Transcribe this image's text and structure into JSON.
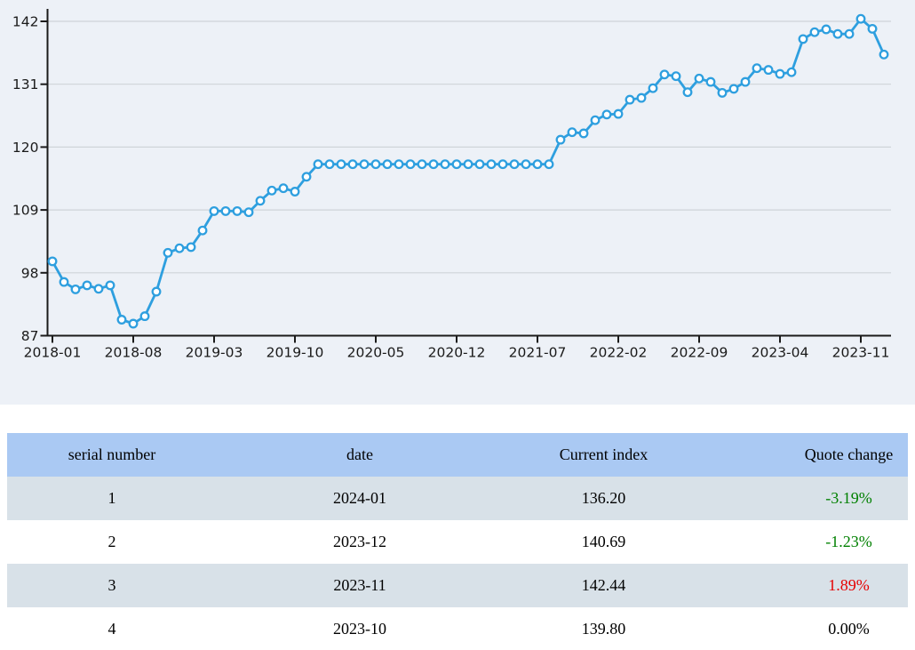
{
  "chart_data": {
    "type": "line",
    "title": "",
    "xlabel": "",
    "ylabel": "",
    "series_name": "Current index",
    "x": [
      "2018-01",
      "2018-02",
      "2018-03",
      "2018-04",
      "2018-05",
      "2018-06",
      "2018-07",
      "2018-08",
      "2018-09",
      "2018-10",
      "2018-11",
      "2018-12",
      "2019-01",
      "2019-02",
      "2019-03",
      "2019-04",
      "2019-05",
      "2019-06",
      "2019-07",
      "2019-08",
      "2019-09",
      "2019-10",
      "2019-11",
      "2019-12",
      "2020-01",
      "2020-02",
      "2020-03",
      "2020-04",
      "2020-05",
      "2020-06",
      "2020-07",
      "2020-08",
      "2020-09",
      "2020-10",
      "2020-11",
      "2020-12",
      "2021-01",
      "2021-02",
      "2021-03",
      "2021-04",
      "2021-05",
      "2021-06",
      "2021-07",
      "2021-08",
      "2021-09",
      "2021-10",
      "2021-11",
      "2021-12",
      "2022-01",
      "2022-02",
      "2022-03",
      "2022-04",
      "2022-05",
      "2022-06",
      "2022-07",
      "2022-08",
      "2022-09",
      "2022-10",
      "2022-11",
      "2022-12",
      "2023-01",
      "2023-02",
      "2023-03",
      "2023-04",
      "2023-05",
      "2023-06",
      "2023-07",
      "2023-08",
      "2023-09",
      "2023-10",
      "2023-11",
      "2023-12",
      "2024-01"
    ],
    "values": [
      100.0,
      96.4,
      95.1,
      95.8,
      95.2,
      95.8,
      89.8,
      89.1,
      90.4,
      94.7,
      101.5,
      102.3,
      102.5,
      105.4,
      108.8,
      108.8,
      108.8,
      108.6,
      110.6,
      112.4,
      112.8,
      112.2,
      114.8,
      117.0,
      117.0,
      117.0,
      117.0,
      117.0,
      117.0,
      117.0,
      117.0,
      117.0,
      117.0,
      117.0,
      117.0,
      117.0,
      117.0,
      117.0,
      117.0,
      117.0,
      117.0,
      117.0,
      117.0,
      117.0,
      121.3,
      122.6,
      122.4,
      124.7,
      125.7,
      125.8,
      128.3,
      128.6,
      130.3,
      132.7,
      132.4,
      129.6,
      132.0,
      131.4,
      129.5,
      130.2,
      131.4,
      133.8,
      133.5,
      132.8,
      133.1,
      138.9,
      140.1,
      140.6,
      139.8,
      139.8,
      142.44,
      140.69,
      136.2
    ],
    "x_tick_labels": [
      "2018-01",
      "2018-08",
      "2019-03",
      "2019-10",
      "2020-05",
      "2020-12",
      "2021-07",
      "2022-02",
      "2022-09",
      "2023-04",
      "2023-11"
    ],
    "y_ticks": [
      87,
      98,
      109,
      120,
      131,
      142
    ],
    "ylim": [
      87,
      145.5
    ],
    "grid": true,
    "legend_position": "none",
    "line_color": "#2e9fdf",
    "marker": "open-circle",
    "marker_fill": "#ffffff",
    "background": "#edf1f7",
    "grid_color": "#cfd4d9",
    "axis_color": "#1a1a1a",
    "tick_label_color": "#1a1a1a"
  },
  "table": {
    "headers": [
      "serial number",
      "date",
      "Current index",
      "Quote change"
    ],
    "header_bg": "#aac9f3",
    "row_alt_bg": "#d8e1e8",
    "row_bg": "#ffffff",
    "change_colors": {
      "up": "#e60000",
      "down": "#008000",
      "flat": "#000000"
    },
    "rows": [
      {
        "serial_number": "1",
        "date": "2024-01",
        "current_index": "136.20",
        "quote_change": "-3.19%",
        "change_direction": "down"
      },
      {
        "serial_number": "2",
        "date": "2023-12",
        "current_index": "140.69",
        "quote_change": "-1.23%",
        "change_direction": "down"
      },
      {
        "serial_number": "3",
        "date": "2023-11",
        "current_index": "142.44",
        "quote_change": "1.89%",
        "change_direction": "up"
      },
      {
        "serial_number": "4",
        "date": "2023-10",
        "current_index": "139.80",
        "quote_change": "0.00%",
        "change_direction": "flat"
      }
    ]
  }
}
